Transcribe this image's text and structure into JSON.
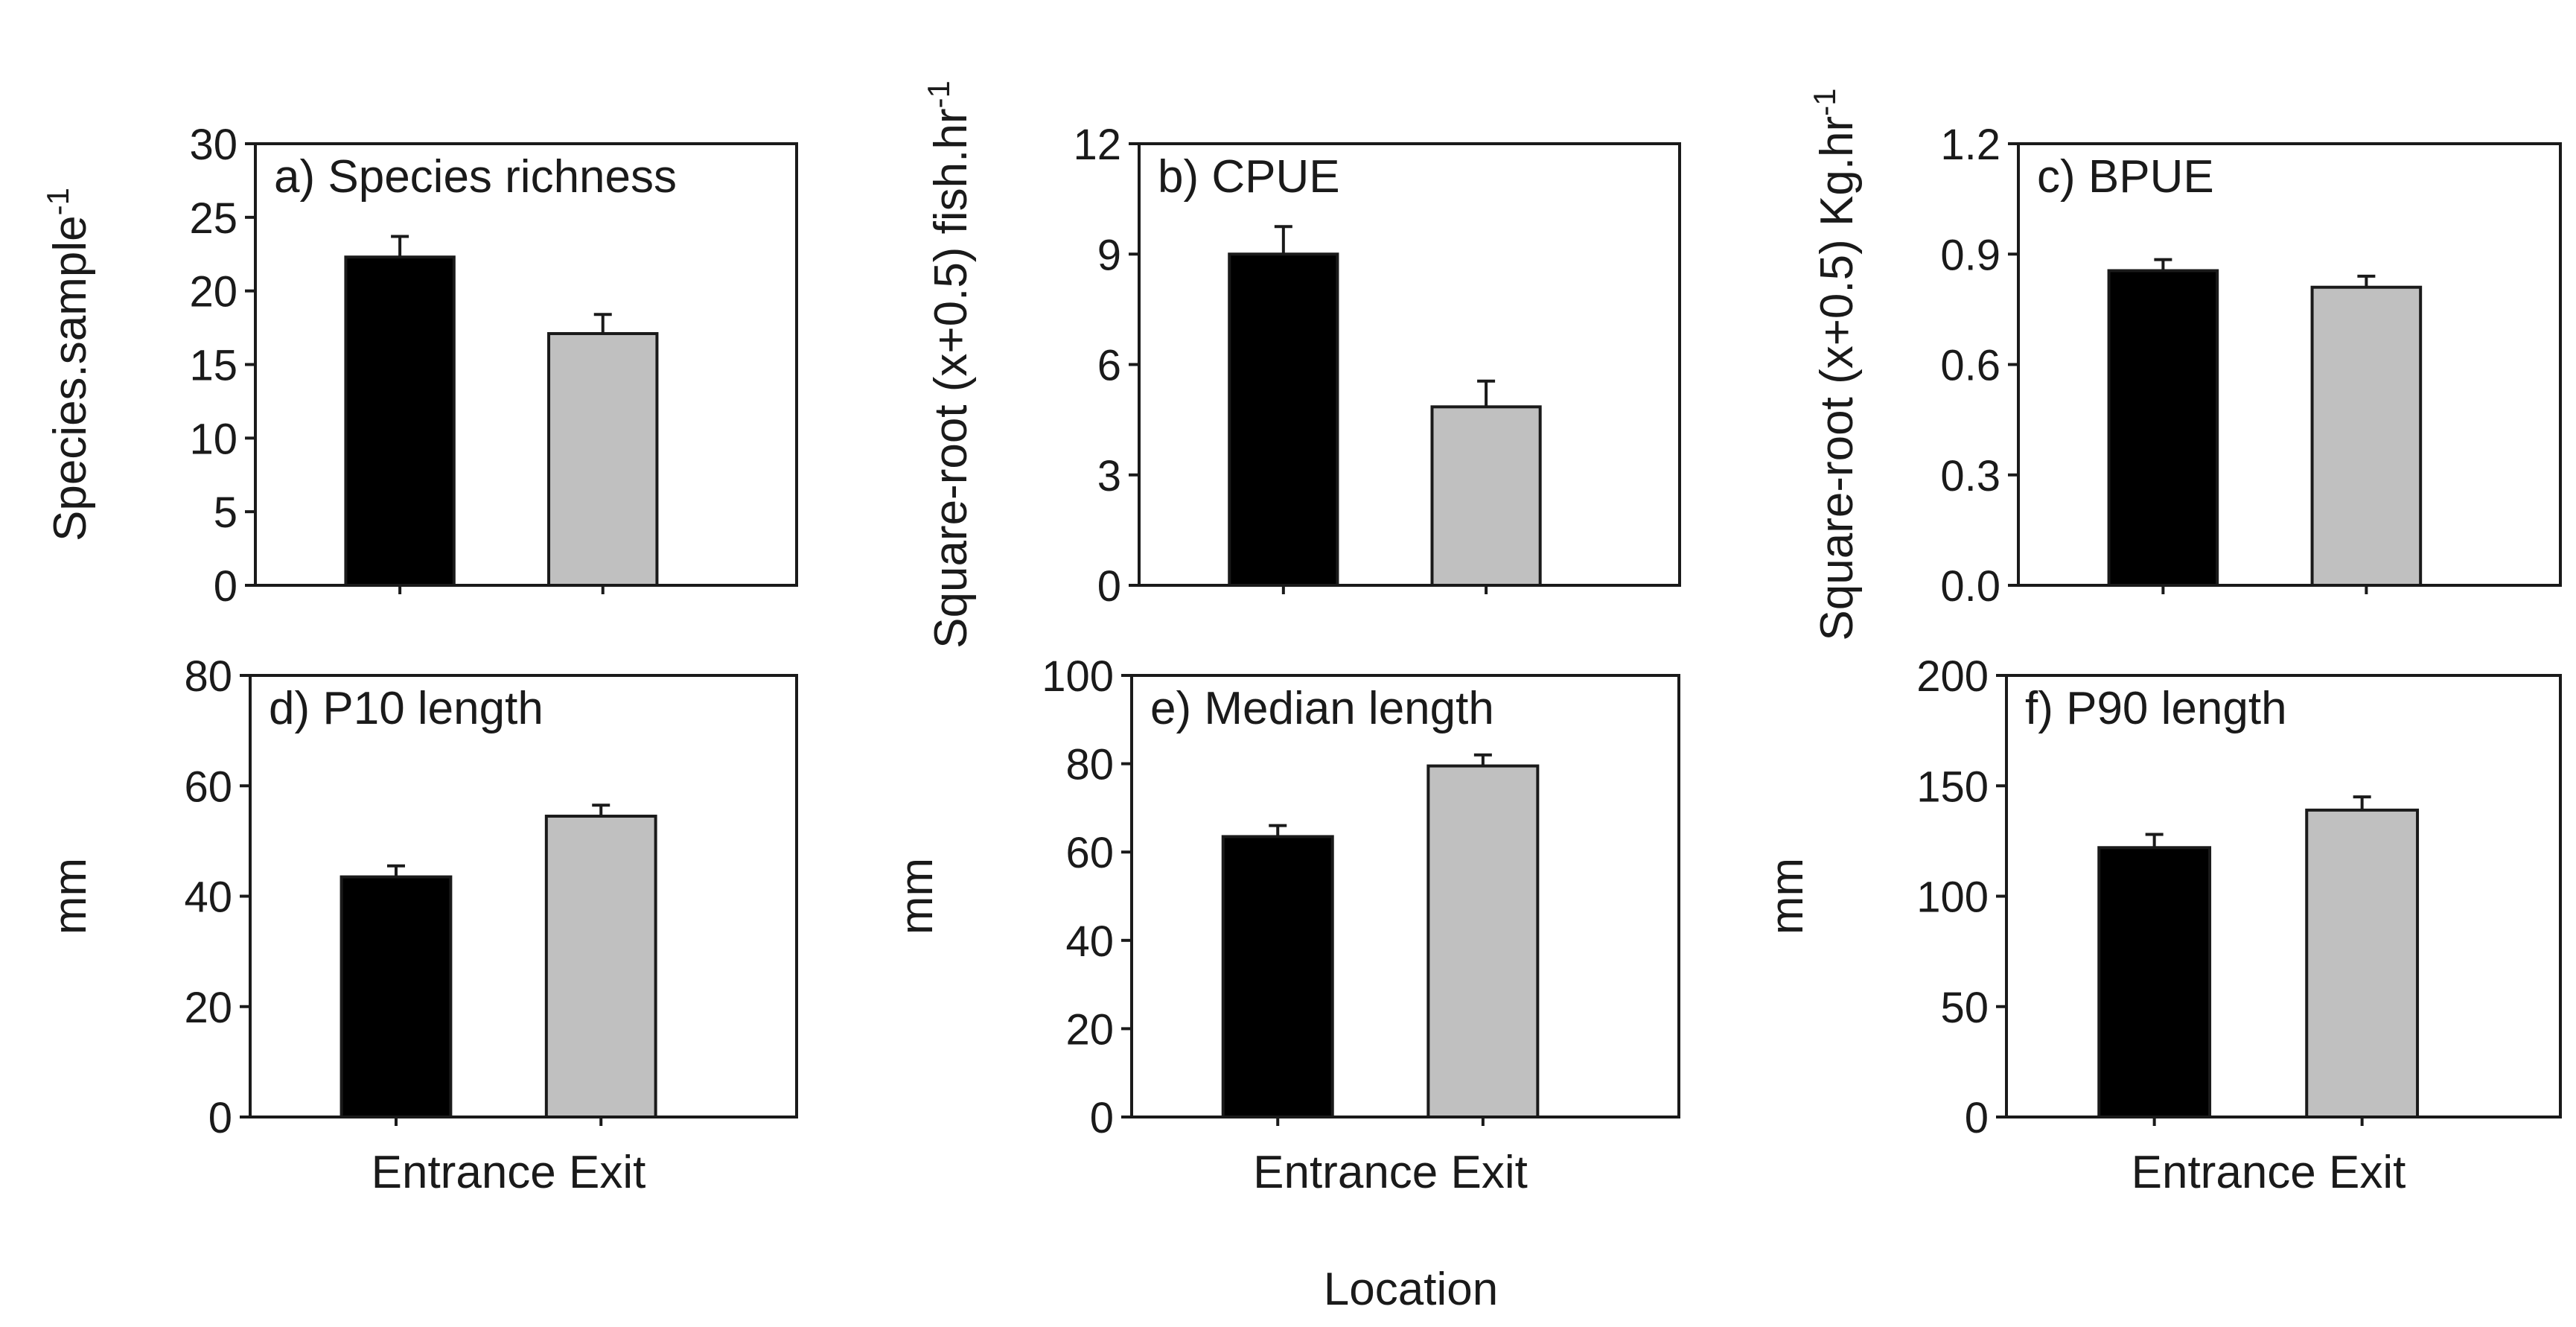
{
  "figure": {
    "xlabel": "Location",
    "category_colors": [
      "#000000",
      "#c0c0c0"
    ]
  },
  "chart_data": [
    {
      "id": "a",
      "type": "bar",
      "title": "a) Species richness",
      "categories": [
        "Entrance",
        "Exit"
      ],
      "values": [
        22.3,
        17.1
      ],
      "errors": [
        1.4,
        1.3
      ],
      "ylabel": {
        "main": "Species.sample",
        "sup": "-1"
      },
      "ylim": [
        0,
        30
      ],
      "yticks": [
        "0",
        "5",
        "10",
        "15",
        "20",
        "25",
        "30"
      ],
      "show_xtick_labels": false
    },
    {
      "id": "b",
      "type": "bar",
      "title": "b) CPUE",
      "categories": [
        "Entrance",
        "Exit"
      ],
      "values": [
        9.0,
        4.85
      ],
      "errors": [
        0.75,
        0.7
      ],
      "ylabel": {
        "main": "Square-root (x+0.5) fish.hr",
        "sup": "-1"
      },
      "ylim": [
        0,
        12
      ],
      "yticks": [
        "0",
        "3",
        "6",
        "9",
        "12"
      ],
      "show_xtick_labels": false
    },
    {
      "id": "c",
      "type": "bar",
      "title": "c) BPUE",
      "categories": [
        "Entrance",
        "Exit"
      ],
      "values": [
        0.855,
        0.81
      ],
      "errors": [
        0.03,
        0.03
      ],
      "ylabel": {
        "main": "Square-root (x+0.5) Kg.hr",
        "sup": "-1"
      },
      "ylim": [
        0,
        1.2
      ],
      "yticks": [
        "0.0",
        "0.3",
        "0.6",
        "0.9",
        "1.2"
      ],
      "show_xtick_labels": false
    },
    {
      "id": "d",
      "type": "bar",
      "title": "d) P10 length",
      "categories": [
        "Entrance",
        "Exit"
      ],
      "values": [
        43.5,
        54.5
      ],
      "errors": [
        2.0,
        2.0
      ],
      "ylabel": {
        "main": "mm",
        "sup": ""
      },
      "ylim": [
        0,
        80
      ],
      "yticks": [
        "0",
        "20",
        "40",
        "60",
        "80"
      ],
      "show_xtick_labels": true
    },
    {
      "id": "e",
      "type": "bar",
      "title": "e) Median length",
      "categories": [
        "Entrance",
        "Exit"
      ],
      "values": [
        63.5,
        79.5
      ],
      "errors": [
        2.5,
        2.5
      ],
      "ylabel": {
        "main": "mm",
        "sup": ""
      },
      "ylim": [
        0,
        100
      ],
      "yticks": [
        "0",
        "20",
        "40",
        "60",
        "80",
        "100"
      ],
      "show_xtick_labels": true
    },
    {
      "id": "f",
      "type": "bar",
      "title": "f) P90 length",
      "categories": [
        "Entrance",
        "Exit"
      ],
      "values": [
        122,
        139
      ],
      "errors": [
        6,
        6
      ],
      "ylabel": {
        "main": "mm",
        "sup": ""
      },
      "ylim": [
        0,
        200
      ],
      "yticks": [
        "0",
        "50",
        "100",
        "150",
        "200"
      ],
      "show_xtick_labels": true
    }
  ]
}
